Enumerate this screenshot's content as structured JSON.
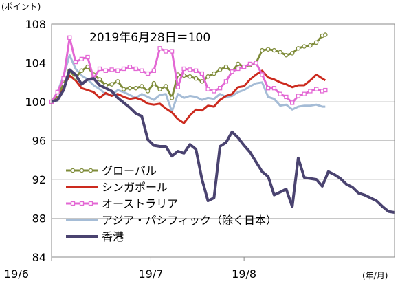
{
  "chart_data": {
    "type": "line",
    "ylabel": "(ポイント)",
    "xlabel_unit": "(年/月)",
    "annotation": "2019年6月28日＝100",
    "ylim": [
      84,
      108
    ],
    "y_ticks": [
      84,
      88,
      92,
      96,
      100,
      104,
      108
    ],
    "x_ticks": [
      {
        "label": "19/6",
        "day": 0
      },
      {
        "label": "19/7",
        "day": 33
      },
      {
        "label": "19/8",
        "day": 64
      }
    ],
    "x_range_days": [
      0,
      91
    ],
    "grid": "horizontal",
    "legend_position": "bottom-left",
    "series": [
      {
        "name": "グローバル",
        "color": "#7f8c3a",
        "marker": "circle",
        "points": [
          [
            0,
            100
          ],
          [
            2,
            100.7
          ],
          [
            4,
            101.8
          ],
          [
            6,
            103.2
          ],
          [
            8,
            102.5
          ],
          [
            10,
            103.2
          ],
          [
            12,
            103.6
          ],
          [
            14,
            102.8
          ],
          [
            16,
            102.3
          ],
          [
            18,
            101.7
          ],
          [
            20,
            101.8
          ],
          [
            22,
            102.1
          ],
          [
            24,
            101.3
          ],
          [
            26,
            101.4
          ],
          [
            28,
            101.4
          ],
          [
            30,
            101.6
          ],
          [
            32,
            101.1
          ],
          [
            34,
            101.9
          ],
          [
            36,
            101.3
          ],
          [
            38,
            101.6
          ],
          [
            40,
            100.4
          ],
          [
            42,
            102.8
          ],
          [
            44,
            102.7
          ],
          [
            46,
            102.6
          ],
          [
            48,
            102.4
          ],
          [
            50,
            102.1
          ],
          [
            52,
            102.6
          ],
          [
            54,
            102.9
          ],
          [
            56,
            103.3
          ],
          [
            58,
            103.6
          ],
          [
            60,
            103.1
          ],
          [
            62,
            103.9
          ],
          [
            64,
            103.6
          ],
          [
            66,
            103.8
          ],
          [
            68,
            104
          ],
          [
            70,
            105.3
          ],
          [
            72,
            105.4
          ],
          [
            74,
            105.3
          ],
          [
            76,
            105.1
          ],
          [
            78,
            104.8
          ],
          [
            80,
            105
          ],
          [
            82,
            105.5
          ],
          [
            84,
            105.7
          ],
          [
            86,
            105.8
          ],
          [
            88,
            106.1
          ],
          [
            90,
            106.8
          ],
          [
            91,
            106.9
          ]
        ]
      },
      {
        "name": "シンガポール",
        "color": "#cc2a1e",
        "marker": "none",
        "points": [
          [
            0,
            100
          ],
          [
            2,
            100.6
          ],
          [
            4,
            101.6
          ],
          [
            6,
            102.7
          ],
          [
            8,
            102.2
          ],
          [
            10,
            101.4
          ],
          [
            12,
            101.2
          ],
          [
            14,
            101
          ],
          [
            16,
            100.4
          ],
          [
            18,
            100.9
          ],
          [
            20,
            100.6
          ],
          [
            22,
            100.8
          ],
          [
            24,
            100.5
          ],
          [
            26,
            100.3
          ],
          [
            28,
            100.4
          ],
          [
            30,
            100.2
          ],
          [
            32,
            99.8
          ],
          [
            34,
            99.7
          ],
          [
            36,
            99.8
          ],
          [
            38,
            99.3
          ],
          [
            40,
            98.9
          ],
          [
            42,
            98.2
          ],
          [
            44,
            97.8
          ],
          [
            46,
            98.6
          ],
          [
            48,
            99.2
          ],
          [
            50,
            99.1
          ],
          [
            52,
            99.6
          ],
          [
            54,
            99.5
          ],
          [
            56,
            100.2
          ],
          [
            58,
            100.6
          ],
          [
            60,
            100.8
          ],
          [
            62,
            101.5
          ],
          [
            64,
            101.6
          ],
          [
            66,
            102.3
          ],
          [
            68,
            102.8
          ],
          [
            70,
            103.2
          ],
          [
            72,
            102.5
          ],
          [
            74,
            102.3
          ],
          [
            76,
            102
          ],
          [
            78,
            101.8
          ],
          [
            80,
            101.5
          ],
          [
            82,
            101.7
          ],
          [
            84,
            101.7
          ],
          [
            86,
            102.2
          ],
          [
            88,
            102.8
          ],
          [
            90,
            102.4
          ],
          [
            91,
            102.2
          ]
        ]
      },
      {
        "name": "オーストラリア",
        "color": "#e368d4",
        "marker": "square",
        "points": [
          [
            0,
            100
          ],
          [
            2,
            101
          ],
          [
            4,
            102.4
          ],
          [
            6,
            106.6
          ],
          [
            8,
            104.1
          ],
          [
            10,
            104.4
          ],
          [
            12,
            104.6
          ],
          [
            14,
            102.4
          ],
          [
            16,
            103.4
          ],
          [
            18,
            103.2
          ],
          [
            20,
            103.3
          ],
          [
            22,
            103.2
          ],
          [
            24,
            103.4
          ],
          [
            26,
            103.6
          ],
          [
            28,
            103.4
          ],
          [
            30,
            103.2
          ],
          [
            32,
            102.9
          ],
          [
            34,
            103.2
          ],
          [
            36,
            105.5
          ],
          [
            38,
            105.2
          ],
          [
            40,
            105.2
          ],
          [
            42,
            101.5
          ],
          [
            44,
            103.4
          ],
          [
            46,
            103.3
          ],
          [
            48,
            103.2
          ],
          [
            50,
            102.9
          ],
          [
            52,
            101.3
          ],
          [
            54,
            101.1
          ],
          [
            56,
            101.4
          ],
          [
            58,
            102.1
          ],
          [
            60,
            103.1
          ],
          [
            62,
            103.4
          ],
          [
            64,
            103.6
          ],
          [
            66,
            103.9
          ],
          [
            68,
            104
          ],
          [
            70,
            102.8
          ],
          [
            72,
            101.4
          ],
          [
            74,
            101.4
          ],
          [
            76,
            100.8
          ],
          [
            78,
            100.5
          ],
          [
            80,
            99.9
          ],
          [
            82,
            100.6
          ],
          [
            84,
            100.8
          ],
          [
            86,
            101.1
          ],
          [
            88,
            101.3
          ],
          [
            90,
            101.1
          ],
          [
            91,
            101.2
          ]
        ]
      },
      {
        "name": "アジア・パシフィック（除く日本）",
        "color": "#a5bcd6",
        "marker": "none",
        "points": [
          [
            0,
            100
          ],
          [
            2,
            101
          ],
          [
            4,
            102.7
          ],
          [
            6,
            104.8
          ],
          [
            8,
            103.4
          ],
          [
            10,
            102.7
          ],
          [
            12,
            102.3
          ],
          [
            14,
            101.7
          ],
          [
            16,
            101.3
          ],
          [
            18,
            100.8
          ],
          [
            20,
            100.7
          ],
          [
            22,
            101.2
          ],
          [
            24,
            101
          ],
          [
            26,
            100.7
          ],
          [
            28,
            100.4
          ],
          [
            30,
            100.8
          ],
          [
            32,
            100.5
          ],
          [
            34,
            100.2
          ],
          [
            36,
            100.7
          ],
          [
            38,
            100.8
          ],
          [
            40,
            99
          ],
          [
            42,
            100.8
          ],
          [
            44,
            100.4
          ],
          [
            46,
            100.6
          ],
          [
            48,
            100.5
          ],
          [
            50,
            100.2
          ],
          [
            52,
            100.4
          ],
          [
            54,
            100.3
          ],
          [
            56,
            100.8
          ],
          [
            58,
            100.5
          ],
          [
            60,
            100.6
          ],
          [
            62,
            101
          ],
          [
            64,
            101.2
          ],
          [
            66,
            101.6
          ],
          [
            68,
            101.9
          ],
          [
            70,
            102
          ],
          [
            72,
            100.5
          ],
          [
            74,
            100.3
          ],
          [
            76,
            99.6
          ],
          [
            78,
            99.7
          ],
          [
            80,
            99.2
          ],
          [
            82,
            99.5
          ],
          [
            84,
            99.6
          ],
          [
            86,
            99.6
          ],
          [
            88,
            99.7
          ],
          [
            90,
            99.5
          ],
          [
            91,
            99.5
          ]
        ]
      },
      {
        "name": "香港",
        "color": "#4a4370",
        "marker": "none",
        "points": [
          [
            0,
            100
          ],
          [
            2,
            100.2
          ],
          [
            4,
            101.2
          ],
          [
            6,
            103.3
          ],
          [
            8,
            102.8
          ],
          [
            10,
            101.8
          ],
          [
            12,
            102.3
          ],
          [
            14,
            102.4
          ],
          [
            16,
            101.7
          ],
          [
            18,
            101.4
          ],
          [
            20,
            101.1
          ],
          [
            22,
            100.4
          ],
          [
            24,
            99.9
          ],
          [
            26,
            99.4
          ],
          [
            28,
            98.8
          ],
          [
            30,
            98.5
          ],
          [
            32,
            96.1
          ],
          [
            34,
            95.5
          ],
          [
            36,
            95.4
          ],
          [
            38,
            95.4
          ],
          [
            40,
            94.4
          ],
          [
            42,
            94.9
          ],
          [
            44,
            94.7
          ],
          [
            46,
            95.6
          ],
          [
            48,
            95.1
          ],
          [
            50,
            92
          ],
          [
            52,
            89.8
          ],
          [
            54,
            90.1
          ],
          [
            56,
            95.4
          ],
          [
            58,
            95.8
          ],
          [
            60,
            96.9
          ],
          [
            62,
            96.3
          ],
          [
            64,
            95.5
          ],
          [
            66,
            94.8
          ],
          [
            68,
            93.8
          ],
          [
            70,
            92.8
          ],
          [
            72,
            92.3
          ],
          [
            74,
            90.4
          ],
          [
            76,
            90.7
          ],
          [
            78,
            91
          ],
          [
            80,
            89.2
          ],
          [
            82,
            94.2
          ],
          [
            84,
            92.2
          ],
          [
            86,
            92.1
          ],
          [
            88,
            92
          ],
          [
            90,
            91.3
          ],
          [
            92,
            92.8
          ],
          [
            94,
            92.5
          ],
          [
            96,
            92.1
          ],
          [
            98,
            91.5
          ],
          [
            100,
            91.2
          ],
          [
            102,
            90.6
          ],
          [
            104,
            90.4
          ],
          [
            106,
            90.1
          ],
          [
            108,
            89.8
          ],
          [
            110,
            89.2
          ],
          [
            112,
            88.7
          ],
          [
            114,
            88.6
          ]
        ]
      }
    ]
  }
}
